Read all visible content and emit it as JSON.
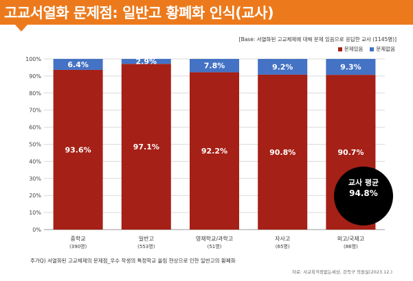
{
  "header": {
    "title": "고교서열화 문제점: 일반고 황폐화 인식(교사)"
  },
  "base_note": "[Base: 서열화된 고교체제에 대해 문제 있음으로 응답한 교사 (1145명)]",
  "average": {
    "label": "교사 평균",
    "value": "94.8%"
  },
  "footnote": "주가Q) 서열화된 고교체제의 문제점_우수 작생의 특정학교 쏠림 현상으로 인한 일반고의 황폐화",
  "source": "자료: 사교육걱정없는세상, 강득구 의원실(2023.12.)",
  "colors": {
    "header": "#ec7a1c",
    "problem": "#a52016",
    "no_problem": "#4472c4"
  },
  "chart_data": {
    "type": "bar",
    "stacked": true,
    "categories": [
      "중학교",
      "일반고",
      "영재학교/과학고",
      "자사고",
      "외고/국제고"
    ],
    "category_counts": [
      "(390명)",
      "(553명)",
      "(51명)",
      "(65명)",
      "(86명)"
    ],
    "series": [
      {
        "name": "문제있음",
        "values": [
          93.6,
          97.1,
          92.2,
          90.8,
          90.7
        ],
        "labels": [
          "93.6%",
          "97.1%",
          "92.2%",
          "90.8%",
          "90.7%"
        ]
      },
      {
        "name": "문제없음",
        "values": [
          6.4,
          2.9,
          7.8,
          9.2,
          9.3
        ],
        "labels": [
          "6.4%",
          "2.9%",
          "7.8%",
          "9.2%",
          "9.3%"
        ]
      }
    ],
    "y_ticks": [
      "0%",
      "10%",
      "20%",
      "30%",
      "40%",
      "50%",
      "60%",
      "70%",
      "80%",
      "90%",
      "100%"
    ],
    "ylim": [
      0,
      100
    ],
    "grid": true,
    "legend_position": "top-right"
  }
}
